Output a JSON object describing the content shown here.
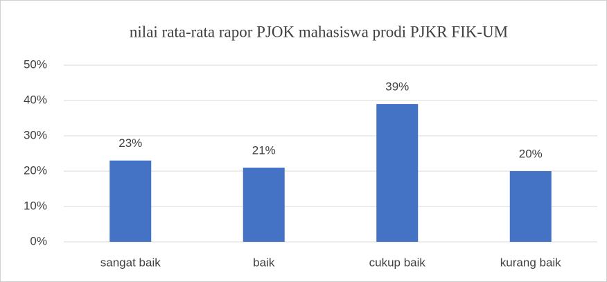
{
  "chart_data": {
    "type": "bar",
    "title": "nilai rata-rata rapor PJOK mahasiswa prodi PJKR FIK-UM",
    "categories": [
      "sangat baik",
      "baik",
      "cukup baik",
      "kurang baik"
    ],
    "values": [
      23,
      21,
      39,
      20
    ],
    "value_labels": [
      "23%",
      "21%",
      "39%",
      "20%"
    ],
    "color": "#4472c4",
    "ylim": [
      0,
      50
    ],
    "yticks": [
      {
        "value": 0,
        "label": "0%"
      },
      {
        "value": 10,
        "label": "10%"
      },
      {
        "value": 20,
        "label": "20%"
      },
      {
        "value": 30,
        "label": "30%"
      },
      {
        "value": 40,
        "label": "40%"
      },
      {
        "value": 50,
        "label": "50%"
      }
    ],
    "grid": true
  }
}
